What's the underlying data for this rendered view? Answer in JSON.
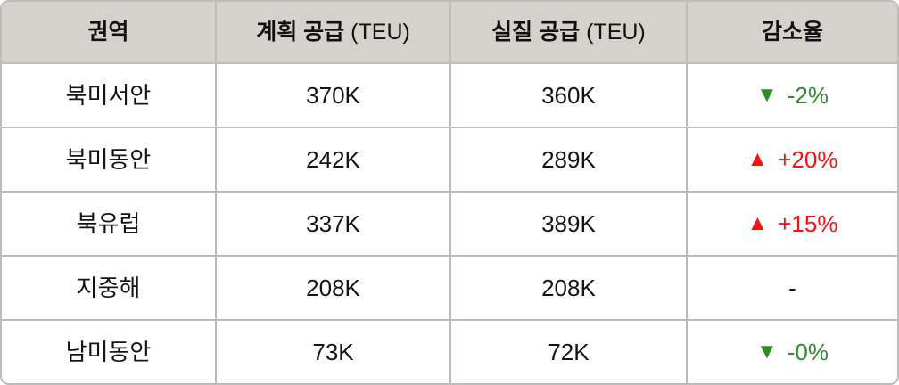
{
  "colors": {
    "header_bg": "#d5d2ce",
    "grid_border": "#bcbcbc",
    "body_text": "#141414",
    "increase_red": "#f71111",
    "decrease_green": "#2f8a32"
  },
  "icons": {
    "up_arrow": "▲",
    "down_arrow": "▼"
  },
  "header": {
    "region": "권역",
    "planned": "계획 공급",
    "planned_unit": "(TEU)",
    "actual": "실질 공급",
    "actual_unit": "(TEU)",
    "change": "감소율"
  },
  "rows": [
    {
      "region": "북미서안",
      "planned": "370K",
      "actual": "360K",
      "arrow": "▼",
      "change": "-2%",
      "trend": "down"
    },
    {
      "region": "북미동안",
      "planned": "242K",
      "actual": "289K",
      "arrow": "▲",
      "change": "+20%",
      "trend": "up"
    },
    {
      "region": "북유럽",
      "planned": "337K",
      "actual": "389K",
      "arrow": "▲",
      "change": "+15%",
      "trend": "up"
    },
    {
      "region": "지중해",
      "planned": "208K",
      "actual": "208K",
      "arrow": "",
      "change": "-",
      "trend": "none"
    },
    {
      "region": "남미동안",
      "planned": "73K",
      "actual": "72K",
      "arrow": "▼",
      "change": "-0%",
      "trend": "down"
    }
  ],
  "chart_data": {
    "type": "table",
    "title": "",
    "columns": [
      "권역",
      "계획 공급 (TEU)",
      "실질 공급 (TEU)",
      "감소율"
    ],
    "rows": [
      [
        "북미서안",
        "370K",
        "360K",
        "▼ -2%"
      ],
      [
        "북미동안",
        "242K",
        "289K",
        "▲ +20%"
      ],
      [
        "북유럽",
        "337K",
        "389K",
        "▲ +15%"
      ],
      [
        "지중해",
        "208K",
        "208K",
        "-"
      ],
      [
        "남미동안",
        "73K",
        "72K",
        "▼ -0%"
      ]
    ],
    "numeric": {
      "planned_teu": [
        370000,
        242000,
        337000,
        208000,
        73000
      ],
      "actual_teu": [
        360000,
        289000,
        389000,
        208000,
        72000
      ],
      "change_pct": [
        -2,
        20,
        15,
        0,
        0
      ]
    }
  }
}
